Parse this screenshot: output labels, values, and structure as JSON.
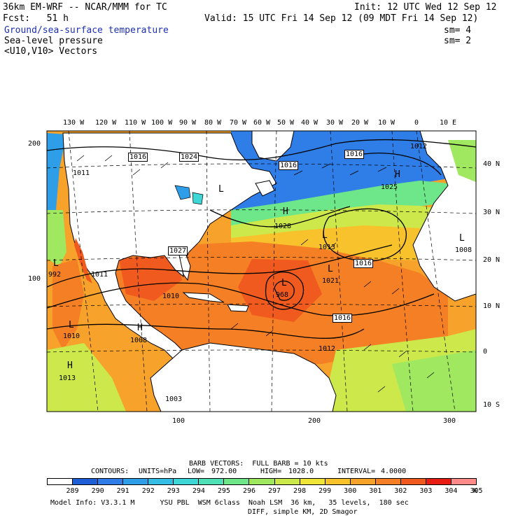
{
  "header": {
    "model": "36km EM-WRF -- NCAR/MMM for TC",
    "init": "Init: 12 UTC Wed 12 Sep 12",
    "fcst": "Fcst:   51 h",
    "valid": "Valid: 15 UTC Fri 14 Sep 12 (09 MDT Fri 14 Sep 12)",
    "field1": "Ground/sea-surface temperature",
    "field1_sm": "sm= 4",
    "field2": "Sea-level pressure",
    "field2_sm": "sm= 2",
    "field3": "<U10,V10> Vectors"
  },
  "colors": {
    "field1_text": "#1e2fb0",
    "ocean_warm": "#f06a1e",
    "ocean_cool": "#2e6fe0",
    "land": "#ffffff"
  },
  "top_lon_labels": [
    "130 W",
    "120 W",
    "110 W",
    "100 W",
    "90 W",
    "80 W",
    "70 W",
    "60 W",
    "50 W",
    "40 W",
    "30 W",
    "20 W",
    "10 W",
    "0",
    "10 E"
  ],
  "right_lat_labels": [
    "40 N",
    "30 N",
    "20 N",
    "10 N",
    "0",
    "10 S"
  ],
  "left_axis_labels": [
    "200",
    "100"
  ],
  "bottom_axis_labels": [
    "100",
    "200",
    "300"
  ],
  "pressure_labels": [
    "1016",
    "1024",
    "1016",
    "1016",
    "1025",
    "1012",
    "1028",
    "1013",
    "1027",
    "1016",
    "1021",
    "1011",
    "992",
    "968",
    "1016",
    "1010",
    "1008",
    "1012",
    "1013",
    "1003",
    "1008",
    "1011",
    "1010"
  ],
  "pressure_centers": [
    "L",
    "H",
    "H",
    "L",
    "L",
    "L",
    "H",
    "L",
    "H",
    "L",
    "L"
  ],
  "barb_info": "BARB VECTORS:  FULL BARB = 10 kts",
  "contours": {
    "label": "CONTOURS:",
    "units": "UNITS=hPa",
    "low_label": "LOW=",
    "low": "972.00",
    "high_label": "HIGH=",
    "high": "1028.0",
    "interval_label": "INTERVAL=",
    "interval": "4.0000"
  },
  "legend": {
    "labels": [
      "289",
      "290",
      "291",
      "292",
      "293",
      "294",
      "295",
      "296",
      "297",
      "298",
      "299",
      "300",
      "301",
      "302",
      "303",
      "304",
      "305"
    ],
    "unit": "K",
    "colors": [
      "#ffffff",
      "#1e5fd8",
      "#2f7de6",
      "#2f9ee8",
      "#35bde6",
      "#3fd6d6",
      "#4fe0b8",
      "#6ee68a",
      "#9fe85f",
      "#cce84a",
      "#f0e33a",
      "#f7c22c",
      "#f7a22a",
      "#f47f24",
      "#f05a1e",
      "#e81c10",
      "#ff8a8a"
    ]
  },
  "footer": {
    "line1": "Model Info: V3.3.1 M      YSU PBL  WSM 6class  Noah LSM  36 km,   35 levels,  180 sec",
    "line2": "DIFF, simple KM, 2D Smagor"
  }
}
